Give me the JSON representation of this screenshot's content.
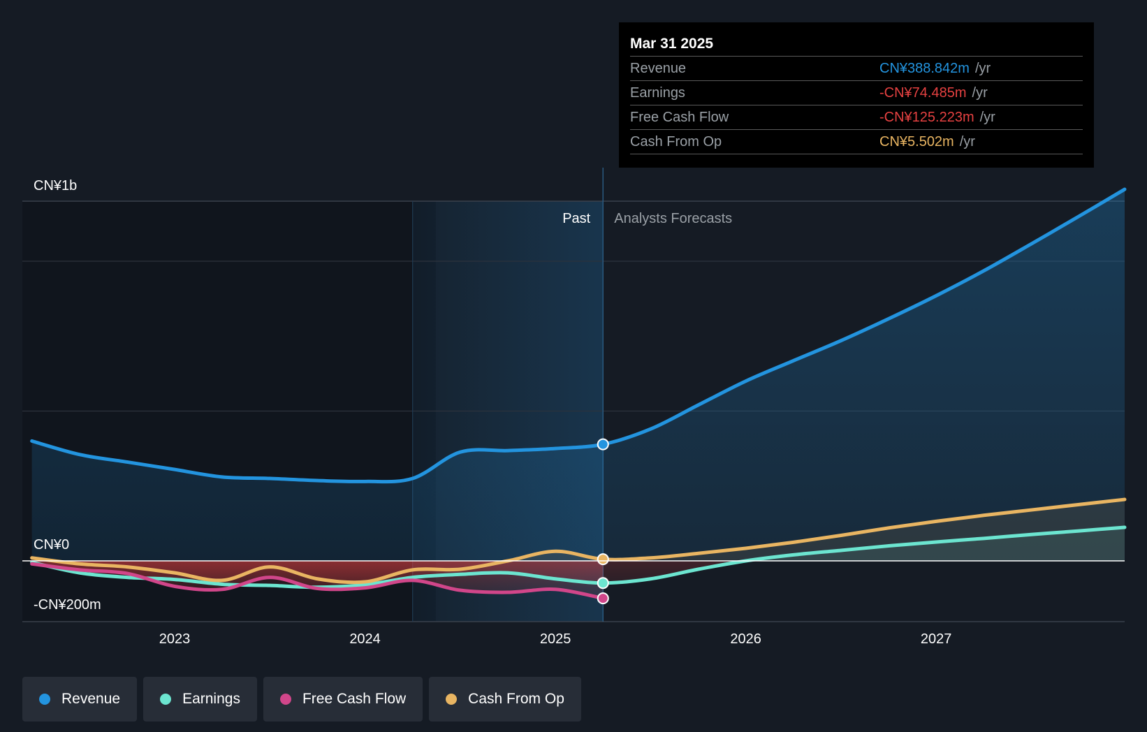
{
  "tooltip": {
    "date": "Mar 31 2025",
    "rows": [
      {
        "label": "Revenue",
        "value": "CN¥388.842m",
        "unit": "/yr",
        "color": "#2394df"
      },
      {
        "label": "Earnings",
        "value": "-CN¥74.485m",
        "unit": "/yr",
        "color": "#e64141"
      },
      {
        "label": "Free Cash Flow",
        "value": "-CN¥125.223m",
        "unit": "/yr",
        "color": "#e64141"
      },
      {
        "label": "Cash From Op",
        "value": "CN¥5.502m",
        "unit": "/yr",
        "color": "#e9b562"
      }
    ]
  },
  "legend": [
    {
      "label": "Revenue",
      "color": "#2394df"
    },
    {
      "label": "Earnings",
      "color": "#6ce5d0"
    },
    {
      "label": "Free Cash Flow",
      "color": "#d1468a"
    },
    {
      "label": "Cash From Op",
      "color": "#e9b562"
    }
  ],
  "chart_data": {
    "type": "line",
    "title": "",
    "units": "CN¥ millions",
    "ylim": [
      -200,
      1200
    ],
    "xlim": [
      2022.2,
      2027.99
    ],
    "y_tick_labels": [
      {
        "value": 1200,
        "label": "CN¥1b"
      },
      {
        "value": 0,
        "label": "CN¥0"
      },
      {
        "value": -200,
        "label": "-CN¥200m"
      }
    ],
    "gridlines": [
      1000,
      500
    ],
    "x_ticks": [
      {
        "value": 2023,
        "label": "2023"
      },
      {
        "value": 2024,
        "label": "2024"
      },
      {
        "value": 2025,
        "label": "2025"
      },
      {
        "value": 2026,
        "label": "2026"
      },
      {
        "value": 2027,
        "label": "2027"
      }
    ],
    "past_region_start": 2024.25,
    "divider": 2025.25,
    "past_label": "Past",
    "forecast_label": "Analysts Forecasts",
    "series": [
      {
        "name": "Revenue",
        "color": "#2394df",
        "area": true,
        "marker_at": 2025.25,
        "points": [
          [
            2022.25,
            400
          ],
          [
            2022.5,
            355
          ],
          [
            2022.75,
            330
          ],
          [
            2023.0,
            305
          ],
          [
            2023.25,
            280
          ],
          [
            2023.5,
            275
          ],
          [
            2023.75,
            268
          ],
          [
            2024.0,
            265
          ],
          [
            2024.25,
            275
          ],
          [
            2024.5,
            363
          ],
          [
            2024.75,
            368
          ],
          [
            2025.0,
            375
          ],
          [
            2025.25,
            389
          ],
          [
            2025.5,
            440
          ],
          [
            2025.75,
            520
          ],
          [
            2026.0,
            600
          ],
          [
            2026.25,
            668
          ],
          [
            2026.5,
            735
          ],
          [
            2026.75,
            808
          ],
          [
            2027.0,
            885
          ],
          [
            2027.25,
            968
          ],
          [
            2027.5,
            1058
          ],
          [
            2027.75,
            1150
          ],
          [
            2028.0,
            1240
          ]
        ]
      },
      {
        "name": "Earnings",
        "color": "#6ce5d0",
        "area": true,
        "marker_at": 2025.25,
        "points": [
          [
            2022.25,
            -5
          ],
          [
            2022.5,
            -40
          ],
          [
            2022.75,
            -55
          ],
          [
            2023.0,
            -62
          ],
          [
            2023.25,
            -78
          ],
          [
            2023.5,
            -82
          ],
          [
            2023.75,
            -88
          ],
          [
            2024.0,
            -80
          ],
          [
            2024.25,
            -55
          ],
          [
            2024.5,
            -45
          ],
          [
            2024.75,
            -40
          ],
          [
            2025.0,
            -60
          ],
          [
            2025.25,
            -74
          ],
          [
            2025.5,
            -60
          ],
          [
            2025.75,
            -28
          ],
          [
            2026.0,
            0
          ],
          [
            2026.25,
            20
          ],
          [
            2026.5,
            35
          ],
          [
            2026.75,
            50
          ],
          [
            2027.0,
            63
          ],
          [
            2027.25,
            75
          ],
          [
            2027.5,
            88
          ],
          [
            2027.75,
            100
          ],
          [
            2028.0,
            112
          ]
        ]
      },
      {
        "name": "Free Cash Flow",
        "color": "#d1468a",
        "area": true,
        "marker_at": 2025.25,
        "points": [
          [
            2022.25,
            -10
          ],
          [
            2022.5,
            -30
          ],
          [
            2022.75,
            -42
          ],
          [
            2023.0,
            -85
          ],
          [
            2023.25,
            -95
          ],
          [
            2023.5,
            -55
          ],
          [
            2023.75,
            -92
          ],
          [
            2024.0,
            -90
          ],
          [
            2024.25,
            -65
          ],
          [
            2024.5,
            -98
          ],
          [
            2024.75,
            -105
          ],
          [
            2025.0,
            -95
          ],
          [
            2025.25,
            -125
          ]
        ]
      },
      {
        "name": "Cash From Op",
        "color": "#e9b562",
        "area": true,
        "marker_at": 2025.25,
        "points": [
          [
            2022.25,
            10
          ],
          [
            2022.5,
            -10
          ],
          [
            2022.75,
            -20
          ],
          [
            2023.0,
            -40
          ],
          [
            2023.25,
            -65
          ],
          [
            2023.5,
            -20
          ],
          [
            2023.75,
            -60
          ],
          [
            2024.0,
            -70
          ],
          [
            2024.25,
            -30
          ],
          [
            2024.5,
            -28
          ],
          [
            2024.75,
            0
          ],
          [
            2025.0,
            32
          ],
          [
            2025.25,
            5.5
          ],
          [
            2025.5,
            10
          ],
          [
            2025.75,
            25
          ],
          [
            2026.0,
            42
          ],
          [
            2026.25,
            62
          ],
          [
            2026.5,
            85
          ],
          [
            2026.75,
            110
          ],
          [
            2027.0,
            132
          ],
          [
            2027.25,
            152
          ],
          [
            2027.5,
            170
          ],
          [
            2027.75,
            188
          ],
          [
            2028.0,
            205
          ]
        ]
      }
    ]
  }
}
